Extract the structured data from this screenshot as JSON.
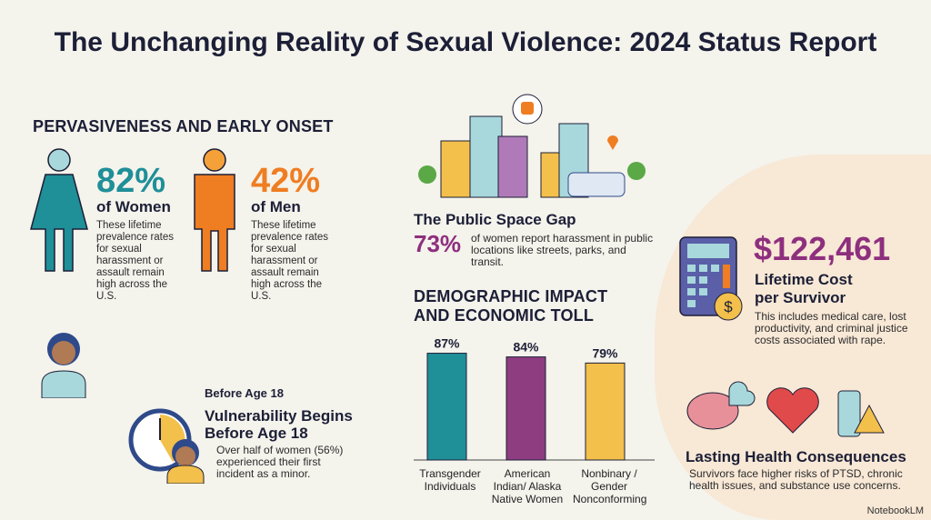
{
  "title": "The Unchanging Reality of Sexual Violence: 2024 Status Report",
  "pervasiveness": {
    "heading": "PERVASIVENESS AND EARLY ONSET",
    "women": {
      "value": "82%",
      "label": "of Women",
      "desc": "These lifetime prevalence rates for sexual harassment or assault remain high across the U.S.",
      "color": "#1f8f98"
    },
    "men": {
      "value": "42%",
      "label": "of Men",
      "desc": "These lifetime prevalence rates for sexual harassment or assault remain high across the U.S.",
      "color": "#ef7d22"
    }
  },
  "minor": {
    "kicker": "Before Age 18",
    "title": "Vulnerability Begins Before Age 18",
    "desc": "Over half of women (56%) experienced their first incident as a minor."
  },
  "public": {
    "title": "The Public Space Gap",
    "value": "73%",
    "desc": "of women report harassment in public locations like streets, parks, and transit.",
    "color": "#8e2f7e"
  },
  "demographic": {
    "heading": "DEMOGRAPHIC IMPACT AND ECONOMIC TOLL"
  },
  "chart_data": {
    "type": "bar",
    "categories": [
      "Transgender Individuals",
      "American Indian/ Alaska Native Women",
      "Nonbinary / Gender Nonconforming"
    ],
    "values": [
      87,
      84,
      79
    ],
    "data_labels": [
      "87%",
      "84%",
      "79%"
    ],
    "colors": [
      "#1f8f98",
      "#8e3d80",
      "#f3c04c"
    ],
    "ylim": [
      0,
      100
    ],
    "grid": false
  },
  "cost": {
    "value": "$122,461",
    "title": "Lifetime Cost per Survivor",
    "desc": "This includes medical care, lost productivity, and criminal justice costs associated with rape.",
    "color": "#8e2f7e"
  },
  "health": {
    "title": "Lasting Health Consequences",
    "desc": "Survivors face higher risks of PTSD, chronic health issues, and substance use concerns."
  },
  "brand": "NotebookLM"
}
